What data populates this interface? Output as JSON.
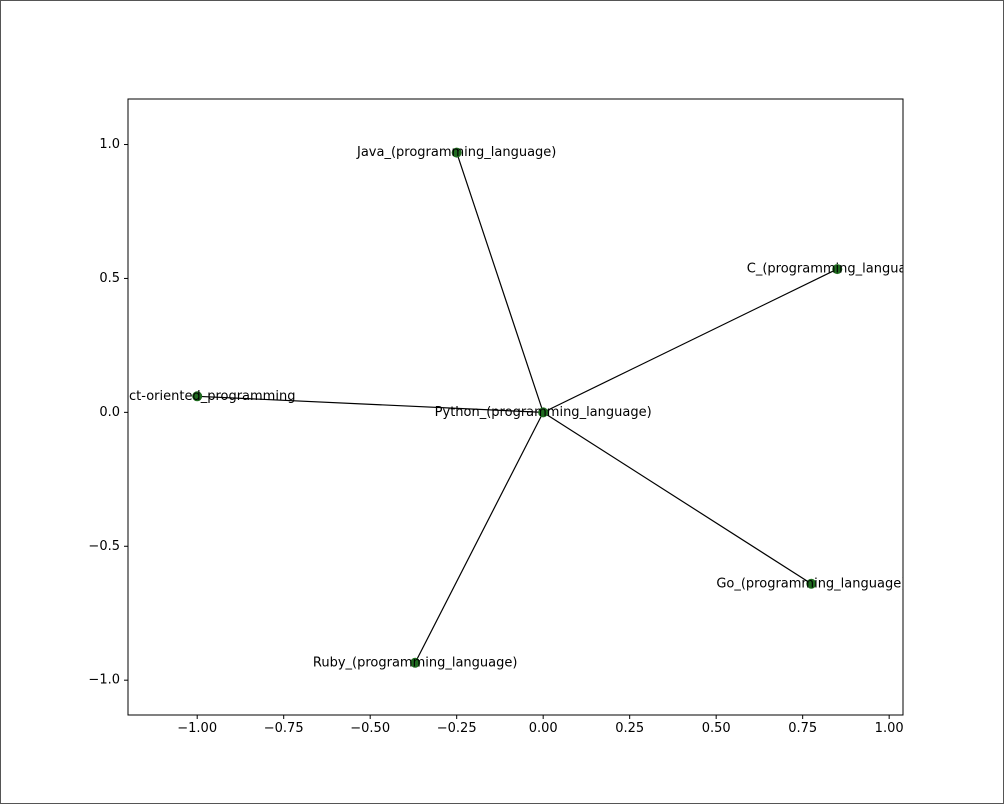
{
  "chart_data": {
    "type": "network",
    "title": "",
    "xlabel": "",
    "ylabel": "",
    "xlim": [
      -1.2,
      1.04
    ],
    "ylim": [
      -1.13,
      1.17
    ],
    "x_ticks": [
      -1.0,
      -0.75,
      -0.5,
      -0.25,
      0.0,
      0.25,
      0.5,
      0.75,
      1.0
    ],
    "x_tick_labels": [
      "−1.00",
      "−0.75",
      "−0.50",
      "−0.25",
      "0.00",
      "0.25",
      "0.50",
      "0.75",
      "1.00"
    ],
    "y_ticks": [
      1.0,
      0.5,
      0.0,
      -0.5,
      -1.0
    ],
    "y_tick_labels": [
      "1.0",
      "0.5",
      "0.0",
      "−0.5",
      "−1.0"
    ],
    "grid": false,
    "node_color": "#1f6b1f",
    "edge_color": "#000000",
    "nodes": [
      {
        "id": "python",
        "label": "Python_(programming_language)",
        "x": 0.0,
        "y": 0.0
      },
      {
        "id": "java",
        "label": "Java_(programming_language)",
        "x": -0.25,
        "y": 0.97
      },
      {
        "id": "c",
        "label": "C_(programming_language)",
        "x": 0.85,
        "y": 0.535
      },
      {
        "id": "oop",
        "label": "Object-oriented_programming",
        "x": -1.0,
        "y": 0.06
      },
      {
        "id": "go",
        "label": "Go_(programming_language)",
        "x": 0.775,
        "y": -0.64
      },
      {
        "id": "ruby",
        "label": "Ruby_(programming_language)",
        "x": -0.37,
        "y": -0.935
      }
    ],
    "edges": [
      [
        "python",
        "java"
      ],
      [
        "python",
        "c"
      ],
      [
        "python",
        "oop"
      ],
      [
        "python",
        "go"
      ],
      [
        "python",
        "ruby"
      ]
    ]
  }
}
